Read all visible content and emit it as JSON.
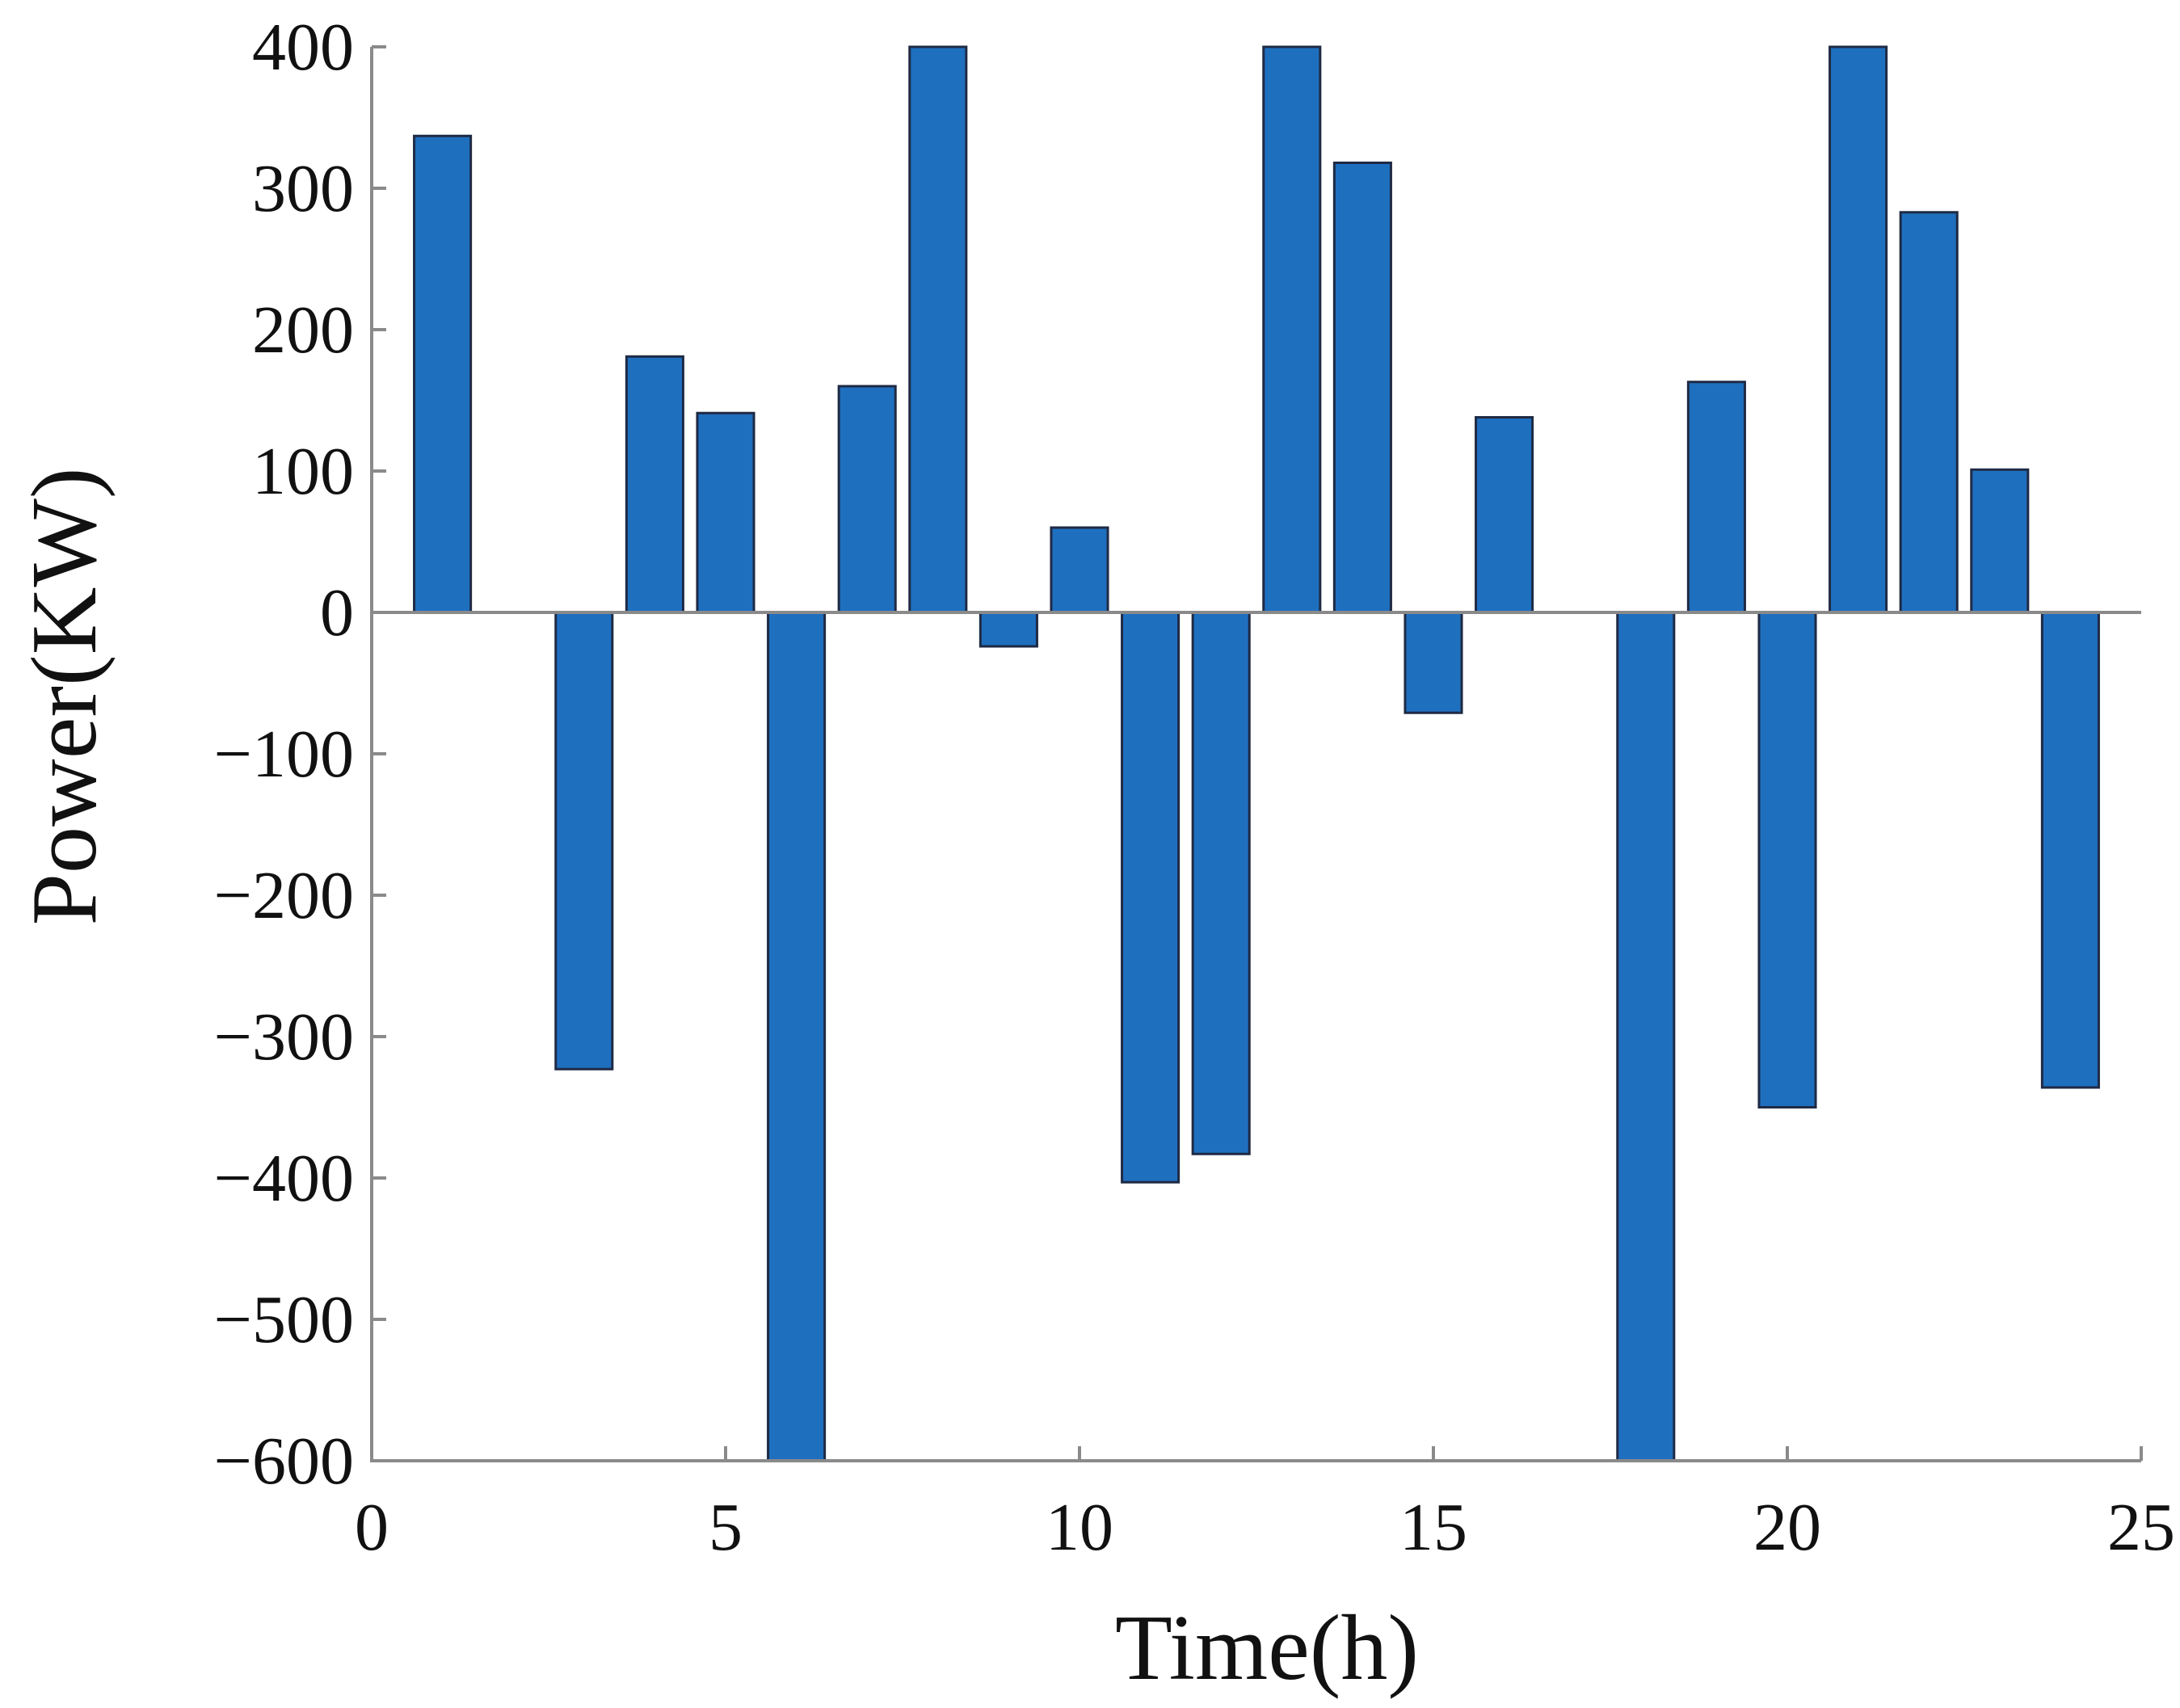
{
  "chart_data": {
    "type": "bar",
    "title": "",
    "xlabel": "Time(h)",
    "ylabel": "Power(KW)",
    "xlim": [
      0,
      25
    ],
    "ylim": [
      -600,
      400
    ],
    "xticks": [
      0,
      5,
      10,
      15,
      20,
      25
    ],
    "yticks": [
      400,
      300,
      200,
      100,
      0,
      -100,
      -200,
      -300,
      -400,
      -500,
      -600
    ],
    "xtick_labels": [
      "0",
      "5",
      "10",
      "15",
      "20",
      "25"
    ],
    "ytick_labels": [
      "400",
      "300",
      "200",
      "100",
      "0",
      "−100",
      "−200",
      "−300",
      "−400",
      "−500",
      "−600"
    ],
    "grid": false,
    "bar_color": "#1f6fbf",
    "x": [
      1,
      2,
      3,
      4,
      5,
      6,
      7,
      8,
      9,
      10,
      11,
      12,
      13,
      14,
      15,
      16,
      17,
      18,
      19,
      20,
      21,
      22,
      23,
      24
    ],
    "values": [
      337,
      0,
      -323,
      181,
      141,
      -600,
      160,
      400,
      -24,
      60,
      -403,
      -383,
      400,
      318,
      -71,
      138,
      0,
      -600,
      163,
      -350,
      400,
      283,
      101,
      -336
    ]
  }
}
